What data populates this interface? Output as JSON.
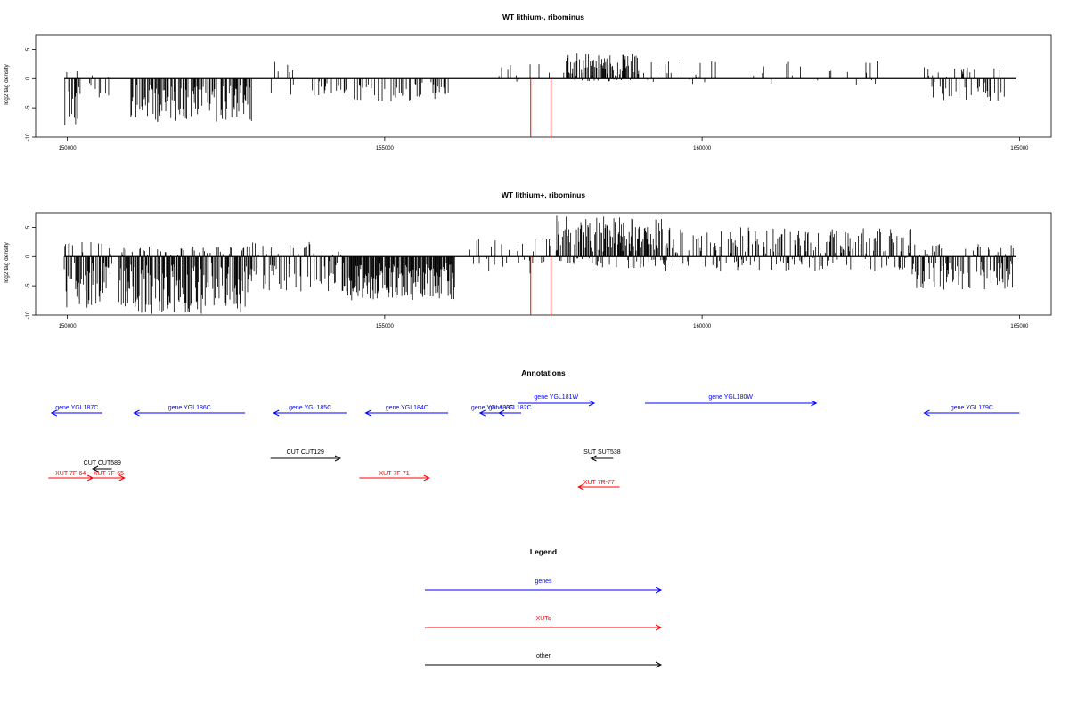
{
  "chart_data": [
    {
      "type": "bar",
      "title": "WT lithium-, ribominus",
      "ylabel": "log2 tag density",
      "xlim": [
        149500,
        165500
      ],
      "ylim": [
        -10,
        7.5
      ],
      "xticks": [
        150000,
        155000,
        160000,
        165000
      ],
      "yticks": [
        -10,
        -5,
        0,
        5
      ],
      "series": [
        {
          "color": "#000000",
          "note_blocks": [
            {
              "start": 149950,
              "end": 150200,
              "min": -8,
              "max": 1.5,
              "density": 0.55
            },
            {
              "start": 150300,
              "end": 150650,
              "min": -3.5,
              "max": 1.0,
              "density": 0.25
            },
            {
              "start": 151000,
              "end": 152900,
              "min": -7.5,
              "max": 0,
              "density": 0.6
            },
            {
              "start": 153200,
              "end": 153600,
              "min": -3.5,
              "max": 3.2,
              "density": 0.25
            },
            {
              "start": 153800,
              "end": 154400,
              "min": -3,
              "max": 0,
              "density": 0.2
            },
            {
              "start": 154500,
              "end": 156000,
              "min": -4,
              "max": 0,
              "density": 0.35
            },
            {
              "start": 156800,
              "end": 157600,
              "min": -1,
              "max": 2.7,
              "density": 0.05
            },
            {
              "start": 157800,
              "end": 159000,
              "min": -0.5,
              "max": 4.3,
              "density": 0.7
            },
            {
              "start": 159000,
              "end": 163000,
              "min": -1.2,
              "max": 3.0,
              "density": 0.08
            },
            {
              "start": 163500,
              "end": 164800,
              "min": -4,
              "max": 2.0,
              "density": 0.3
            }
          ]
        },
        {
          "color": "#ff0000",
          "x": [
            157300,
            157620
          ],
          "values": [
            -10,
            -10
          ]
        }
      ]
    },
    {
      "type": "bar",
      "title": "WT lithium+, ribominus",
      "ylabel": "log2 tag density",
      "xlim": [
        149500,
        165500
      ],
      "ylim": [
        -10,
        7.5
      ],
      "xticks": [
        150000,
        155000,
        160000,
        165000
      ],
      "yticks": [
        -10,
        -5,
        0,
        5
      ],
      "series": [
        {
          "color": "#000000",
          "note_blocks": [
            {
              "start": 149950,
              "end": 150700,
              "min": -9.5,
              "max": 2.5,
              "density": 0.7
            },
            {
              "start": 150800,
              "end": 152900,
              "min": -9.8,
              "max": 1.8,
              "density": 0.9
            },
            {
              "start": 152900,
              "end": 154400,
              "min": -6,
              "max": 2.5,
              "density": 0.5
            },
            {
              "start": 154400,
              "end": 156100,
              "min": -7.5,
              "max": 0,
              "density": 0.9
            },
            {
              "start": 156200,
              "end": 157600,
              "min": -3,
              "max": 3.0,
              "density": 0.2
            },
            {
              "start": 157700,
              "end": 159400,
              "min": -2,
              "max": 7.0,
              "density": 0.85
            },
            {
              "start": 159400,
              "end": 163300,
              "min": -2.5,
              "max": 5.0,
              "density": 0.5
            },
            {
              "start": 163300,
              "end": 164900,
              "min": -5.8,
              "max": 2.2,
              "density": 0.6
            }
          ]
        },
        {
          "color": "#ff0000",
          "x": [
            157300,
            157620
          ],
          "values": [
            -10,
            -10
          ]
        }
      ]
    }
  ],
  "annotations": {
    "title": "Annotations",
    "features": [
      {
        "label": "gene YGL187C",
        "start": 150550,
        "end": 149750,
        "row": 0,
        "color": "#0000ff"
      },
      {
        "label": "gene YGL186C",
        "start": 152800,
        "end": 151050,
        "row": 0,
        "color": "#0000ff"
      },
      {
        "label": "gene YGL185C",
        "start": 154400,
        "end": 153250,
        "row": 0,
        "color": "#0000ff"
      },
      {
        "label": "gene YGL184C",
        "start": 156000,
        "end": 154700,
        "row": 0,
        "color": "#0000ff"
      },
      {
        "label": "gene YGL183C",
        "start": 156900,
        "end": 156500,
        "row": 0,
        "color": "#0000ff"
      },
      {
        "label": "gene YGL182C",
        "start": 157150,
        "end": 156800,
        "row": 0,
        "color": "#0000ff"
      },
      {
        "label": "gene YGL181W",
        "start": 157100,
        "end": 158300,
        "row": -1,
        "color": "#0000ff"
      },
      {
        "label": "gene YGL180W",
        "start": 159100,
        "end": 161800,
        "row": -1,
        "color": "#0000ff"
      },
      {
        "label": "gene YGL179C",
        "start": 165000,
        "end": 163500,
        "row": 0,
        "color": "#0000ff"
      },
      {
        "label": "CUT CUT589",
        "start": 150700,
        "end": 150400,
        "row": 3,
        "color": "#000000"
      },
      {
        "label": "CUT CUT129",
        "start": 153200,
        "end": 154300,
        "row": 2,
        "color": "#000000"
      },
      {
        "label": "SUT SUT538",
        "start": 158600,
        "end": 158250,
        "row": 2,
        "color": "#000000"
      },
      {
        "label": "XUT 7F-64",
        "start": 149700,
        "end": 150400,
        "row": 4,
        "color": "#ff0000"
      },
      {
        "label": "XUT 7F-65",
        "start": 150400,
        "end": 150900,
        "row": 4,
        "color": "#ff0000"
      },
      {
        "label": "XUT 7F-71",
        "start": 154600,
        "end": 155700,
        "row": 4,
        "color": "#ff0000"
      },
      {
        "label": "XUT 7R-77",
        "start": 158700,
        "end": 158050,
        "row": 5,
        "color": "#ff0000"
      }
    ]
  },
  "legend": {
    "title": "Legend",
    "items": [
      {
        "label": "genes",
        "color": "#0000ff"
      },
      {
        "label": "XUTs",
        "color": "#ff0000"
      },
      {
        "label": "other",
        "color": "#000000"
      }
    ]
  }
}
